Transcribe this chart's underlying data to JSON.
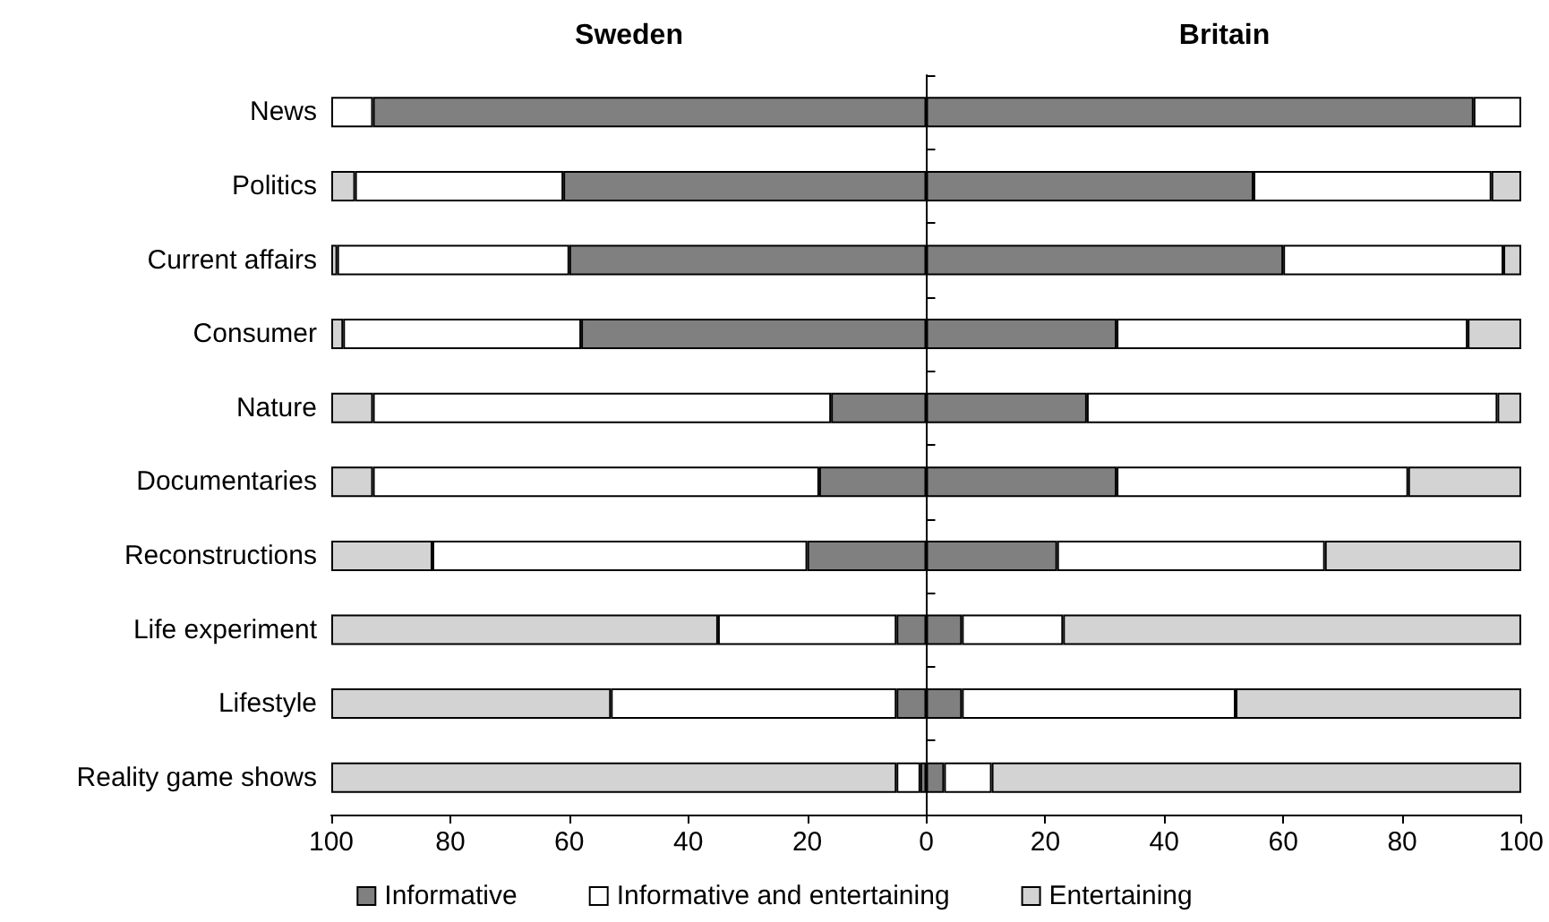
{
  "chart_data": {
    "type": "bar",
    "orientation": "horizontal",
    "stacked": true,
    "categories": [
      "News",
      "Politics",
      "Current affairs",
      "Consumer",
      "Nature",
      "Documentaries",
      "Reconstructions",
      "Life experiment",
      "Lifestyle",
      "Reality game shows"
    ],
    "series": [
      {
        "color": "#808080",
        "values": [
          -93,
          -61,
          -60,
          -58,
          -16,
          -18,
          -20,
          -5,
          -5,
          -1
        ]
      },
      {
        "name": "Informative",
        "color": "#808080",
        "values": [
          92,
          55,
          60,
          32,
          27,
          32,
          22,
          6,
          6,
          3
        ]
      },
      {
        "color": "#ffffff",
        "values": [
          -7,
          -35,
          -39,
          -40,
          -77,
          -75,
          -63,
          -30,
          -48,
          -4
        ]
      },
      {
        "name": "Informative and entertaining",
        "color": "#ffffff",
        "values": [
          8,
          40,
          37,
          59,
          69,
          49,
          45,
          17,
          46,
          8
        ]
      },
      {
        "color": "#d3d3d3",
        "values": [
          0,
          -4,
          -1,
          -2,
          -7,
          -7,
          -17,
          -65,
          -47,
          -95
        ]
      },
      {
        "name": "Entertaining",
        "color": "#d3d3d3",
        "values": [
          0,
          5,
          3,
          9,
          4,
          19,
          33,
          77,
          48,
          89
        ]
      }
    ],
    "xlim": [
      -100,
      100
    ],
    "xticks": [
      {
        "value": -100,
        "label": "100"
      },
      {
        "value": -80,
        "label": "80"
      },
      {
        "value": -60,
        "label": "60"
      },
      {
        "value": -40,
        "label": "40"
      },
      {
        "value": -20,
        "label": "20"
      },
      0,
      20,
      40,
      60,
      80,
      100
    ],
    "annotations": [
      "Sweden",
      "Britain"
    ],
    "legend": "bottom"
  }
}
